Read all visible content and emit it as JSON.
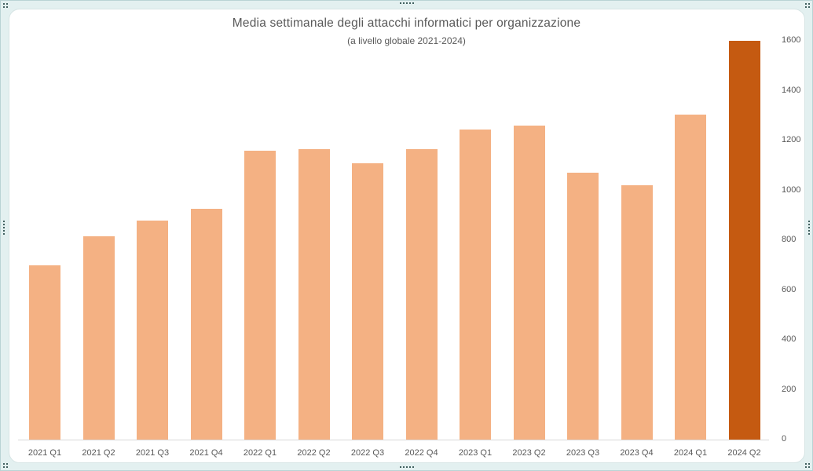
{
  "chart_data": {
    "type": "bar",
    "title": "Media settimanale degli attacchi informatici per organizzazione",
    "subtitle": "(a livello globale 2021-2024)",
    "categories": [
      "2021 Q1",
      "2021 Q2",
      "2021 Q3",
      "2021 Q4",
      "2022 Q1",
      "2022 Q2",
      "2022 Q3",
      "2022 Q4",
      "2023 Q1",
      "2023 Q2",
      "2023 Q3",
      "2023 Q4",
      "2024 Q1",
      "2024 Q2"
    ],
    "values": [
      700,
      815,
      880,
      925,
      1160,
      1165,
      1110,
      1165,
      1245,
      1260,
      1070,
      1020,
      1305,
      1600
    ],
    "xlabel": "",
    "ylabel": "",
    "ylim": [
      0,
      1600
    ],
    "yticks": [
      0,
      200,
      400,
      600,
      800,
      1000,
      1200,
      1400,
      1600
    ],
    "yaxis_position": "right",
    "grid": false,
    "legend": "none",
    "bar_color": "#F4B183",
    "highlight_index": 13,
    "highlight_color": "#C55A11",
    "text_color": "#595959",
    "axis_line_color": "#D9D9D9"
  },
  "selection": {
    "state": "chart-selected",
    "handle_color": "#41605F",
    "frame_background": "#E3F0F0"
  }
}
